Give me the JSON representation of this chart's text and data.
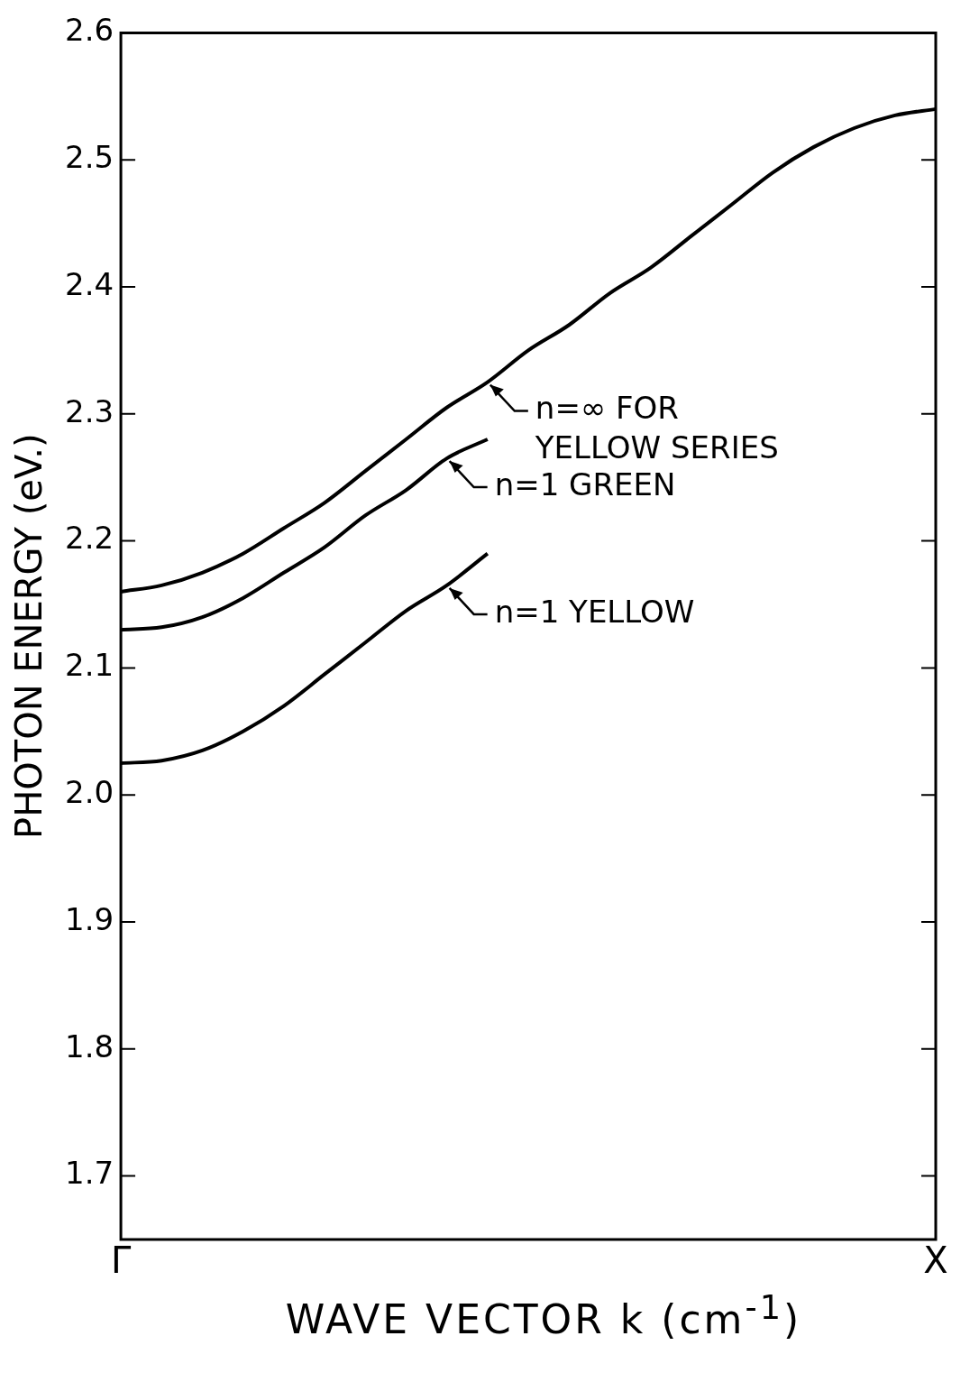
{
  "chart_data": {
    "type": "line",
    "xlabel": "WAVE VECTOR k (cm$^{-1}$)",
    "ylabel": "PHOTON ENERGY (eV.)",
    "categories": [
      "Γ",
      null,
      null,
      null,
      null,
      null,
      null,
      null,
      null,
      null,
      null,
      null,
      null,
      null,
      null,
      null,
      null,
      null,
      null,
      null,
      "X"
    ],
    "ylim": [
      1.65,
      2.6
    ],
    "yticks": [
      {
        "value": 1.7,
        "label": "1.7"
      },
      {
        "value": 1.8,
        "label": "1.8"
      },
      {
        "value": 1.9,
        "label": "1.9"
      },
      {
        "value": 2,
        "label": "2.0"
      },
      {
        "value": 2.1,
        "label": "2.1"
      },
      {
        "value": 2.2,
        "label": "2.2"
      },
      {
        "value": 2.3,
        "label": "2.3"
      },
      {
        "value": 2.4,
        "label": "2.4"
      },
      {
        "value": 2.5,
        "label": "2.5"
      },
      {
        "value": 2.6,
        "label": "2.6"
      }
    ],
    "grid": false,
    "legend": false,
    "marker": "none",
    "line_style": "solid",
    "series": [
      {
        "color": "#000000",
        "values": [
          2.16,
          2.165,
          2.175,
          2.19,
          2.21,
          2.23,
          2.255,
          2.28,
          2.305,
          2.325,
          2.35,
          2.37,
          2.395,
          2.415,
          2.44,
          2.465,
          2.49,
          2.51,
          2.525,
          2.535,
          2.54
        ]
      },
      {
        "color": "#000000",
        "values": [
          2.13,
          2.132,
          2.14,
          2.155,
          2.175,
          2.195,
          2.22,
          2.24,
          2.265,
          2.28,
          null,
          null,
          null,
          null,
          null,
          null,
          null,
          null,
          null,
          null,
          null
        ]
      },
      {
        "color": "#000000",
        "values": [
          2.025,
          2.027,
          2.035,
          2.05,
          2.07,
          2.095,
          2.12,
          2.145,
          2.165,
          2.19,
          null,
          null,
          null,
          null,
          null,
          null,
          null,
          null,
          null,
          null,
          null
        ]
      }
    ],
    "annotations": [
      "n=∞ FOR\nYELLOW SERIES",
      "n=1 GREEN",
      "n=1 YELLOW"
    ]
  }
}
